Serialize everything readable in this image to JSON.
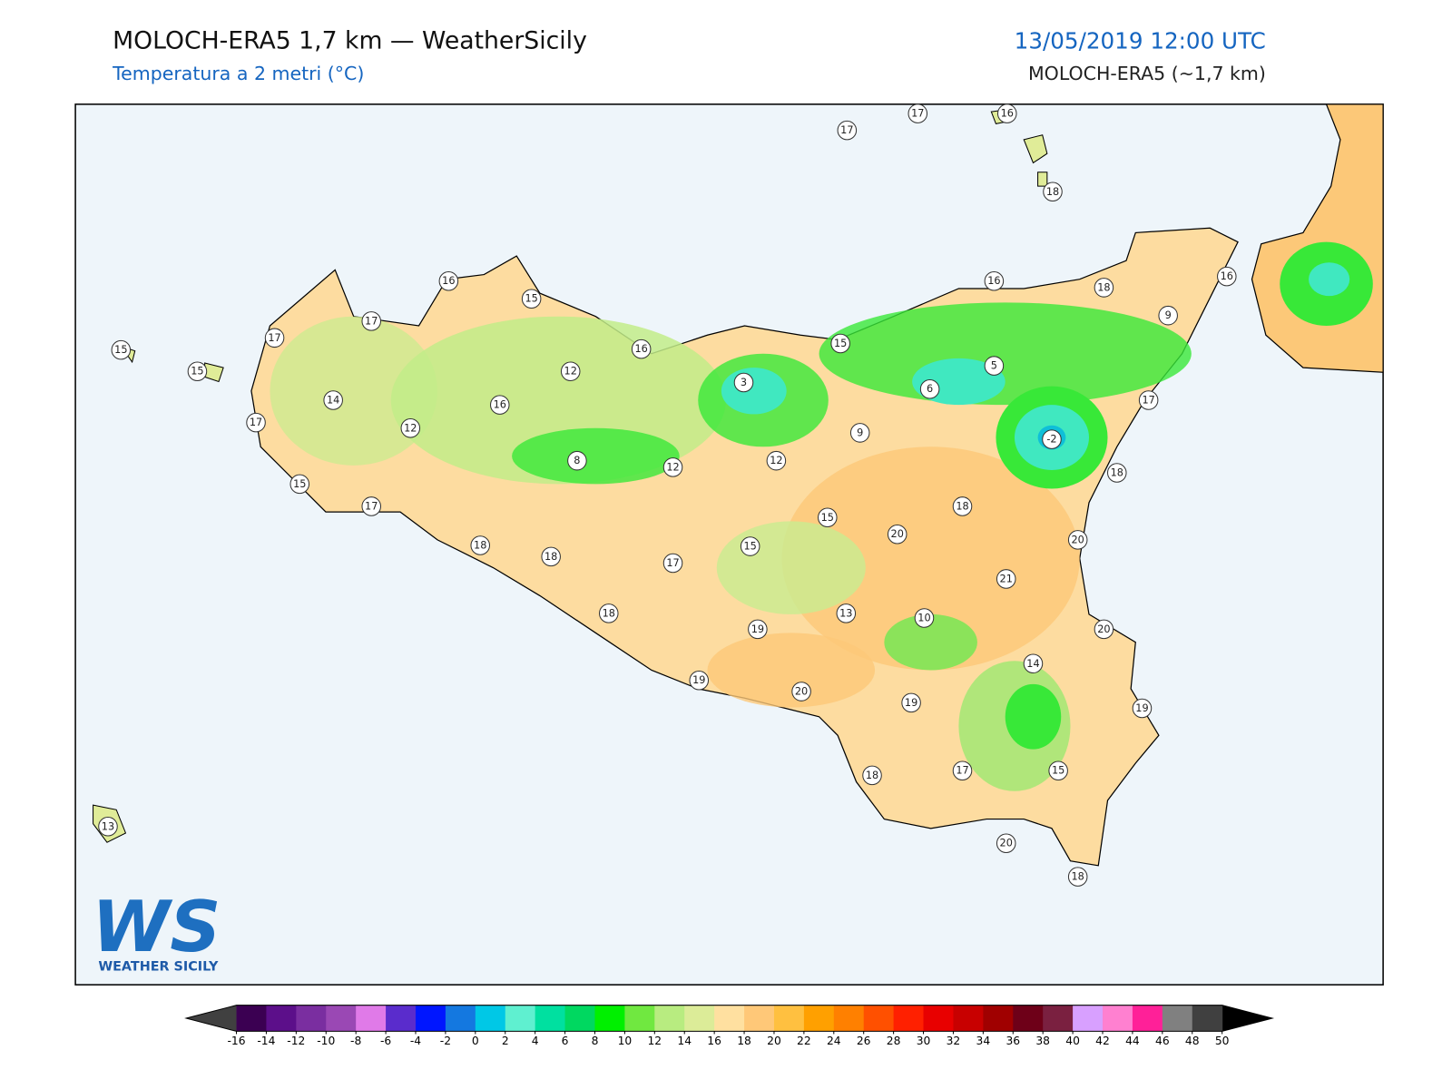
{
  "header": {
    "title": "MOLOCH-ERA5 1,7 km — WeatherSicily",
    "subtitle": "Temperatura a 2 metri (°C)",
    "datetime": "13/05/2019 12:00 UTC",
    "model": "MOLOCH-ERA5 (~1,7 km)"
  },
  "stations": [
    17,
    17,
    16,
    18,
    16,
    15,
    17,
    17,
    15,
    15,
    16,
    12,
    14,
    16,
    12,
    17,
    15,
    17,
    8,
    12,
    3,
    12,
    15,
    16,
    18,
    16,
    9,
    5,
    6,
    9,
    -2,
    17,
    18,
    18,
    20,
    15,
    15,
    17,
    18,
    18,
    18,
    20,
    21,
    13,
    10,
    19,
    20,
    14,
    19,
    20,
    19,
    19,
    18,
    17,
    15,
    13,
    20,
    18
  ],
  "colorbar": {
    "ticks": [
      -16,
      -14,
      -12,
      -10,
      -8,
      -6,
      -4,
      -2,
      0,
      2,
      4,
      6,
      8,
      10,
      12,
      14,
      16,
      18,
      20,
      22,
      24,
      26,
      28,
      30,
      32,
      34,
      36,
      38,
      40,
      42,
      44,
      46,
      48,
      50
    ],
    "colors": [
      "#3b0052",
      "#5c0f8a",
      "#7a2ea0",
      "#9a48b4",
      "#e07ae8",
      "#5a2ccc",
      "#0016ff",
      "#1478e0",
      "#00c8e6",
      "#5ff0d0",
      "#00e0a0",
      "#00d860",
      "#00f000",
      "#70e840",
      "#b8ec80",
      "#dcec98",
      "#ffe0a0",
      "#ffc878",
      "#ffc040",
      "#ffa000",
      "#ff8000",
      "#ff5000",
      "#ff2000",
      "#e80000",
      "#c80000",
      "#a00000",
      "#6e0018",
      "#7a2040",
      "#d8a0ff",
      "#ff80d0",
      "#ff2098",
      "#808080",
      "#404040"
    ],
    "under_color": "#404040",
    "over_color": "#000000"
  },
  "logo": {
    "mark": "WS",
    "text": "WEATHER SICILY"
  }
}
